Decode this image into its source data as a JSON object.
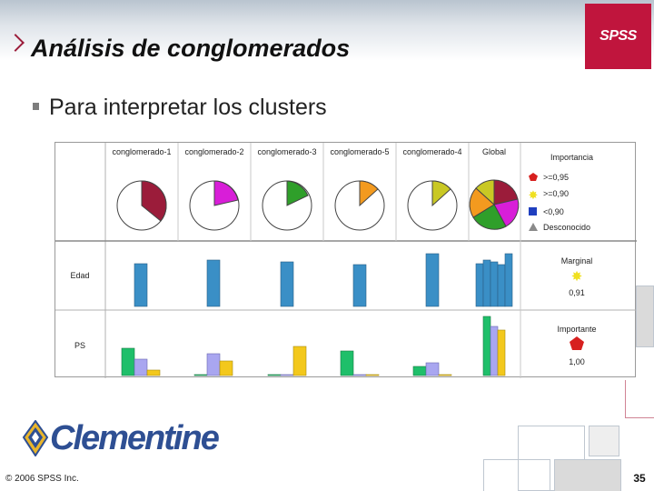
{
  "slide": {
    "title": "Análisis de conglomerados",
    "bullet": "Para interpretar los clusters",
    "logo": "SPSS",
    "copyright": "© 2006 SPSS Inc.",
    "product": "Clementine",
    "page_number": "35"
  },
  "figure": {
    "columns": [
      "conglomerado-1",
      "conglomerado-2",
      "conglomerado-3",
      "conglomerado-5",
      "conglomerado-4",
      "Global"
    ],
    "row_labels": [
      "Edad",
      "PS"
    ],
    "legend_title": "Importancia",
    "legend_items": [
      {
        "label": ">=0,95",
        "shape": "red-pentagon",
        "color": "#d7201f"
      },
      {
        "label": ">=0,90",
        "shape": "yellow-star",
        "color": "#f0e020"
      },
      {
        "label": "<0,90",
        "shape": "blue-square",
        "color": "#1f3fbf"
      },
      {
        "label": "Desconocido",
        "shape": "grey-triangle",
        "color": "#8a8a8a"
      }
    ],
    "edad_badge": {
      "label": "Marginal",
      "value": "0,91",
      "icon": "yellow-star"
    },
    "ps_badge": {
      "label": "Importante",
      "value": "1,00",
      "icon": "red-pentagon"
    },
    "colors": {
      "cluster1": "#9b1c3a",
      "cluster2": "#d81ed8",
      "cluster3": "#2f9f2a",
      "cluster5": "#f39a1f",
      "cluster4": "#c9c824",
      "bar_blue": "#3a8fc6",
      "ps_green": "#1fbf6a",
      "ps_lavender": "#a9a6f0",
      "ps_yellow": "#f3c81c"
    }
  }
}
